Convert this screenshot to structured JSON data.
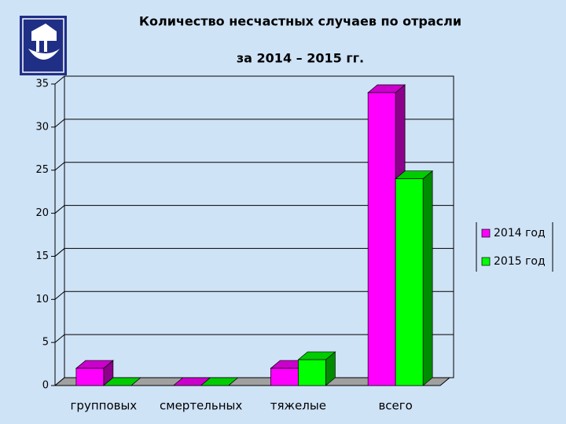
{
  "chart_data": {
    "type": "bar3d",
    "title": "Количество несчастных случаев по отрасли",
    "subtitle": "за 2014 – 2015 гг.",
    "categories": [
      "групповых",
      "смертельных",
      "тяжелые",
      "всего"
    ],
    "series": [
      {
        "name": "2014 год",
        "color": "#ff00ff",
        "values": [
          2,
          0,
          2,
          34
        ]
      },
      {
        "name": "2015 год",
        "color": "#00ff00",
        "values": [
          0,
          0,
          3,
          24
        ]
      }
    ],
    "ylim": [
      0,
      35
    ],
    "yticks": [
      0,
      5,
      10,
      15,
      20,
      25,
      30,
      35
    ],
    "grid": true,
    "legend": "right"
  }
}
